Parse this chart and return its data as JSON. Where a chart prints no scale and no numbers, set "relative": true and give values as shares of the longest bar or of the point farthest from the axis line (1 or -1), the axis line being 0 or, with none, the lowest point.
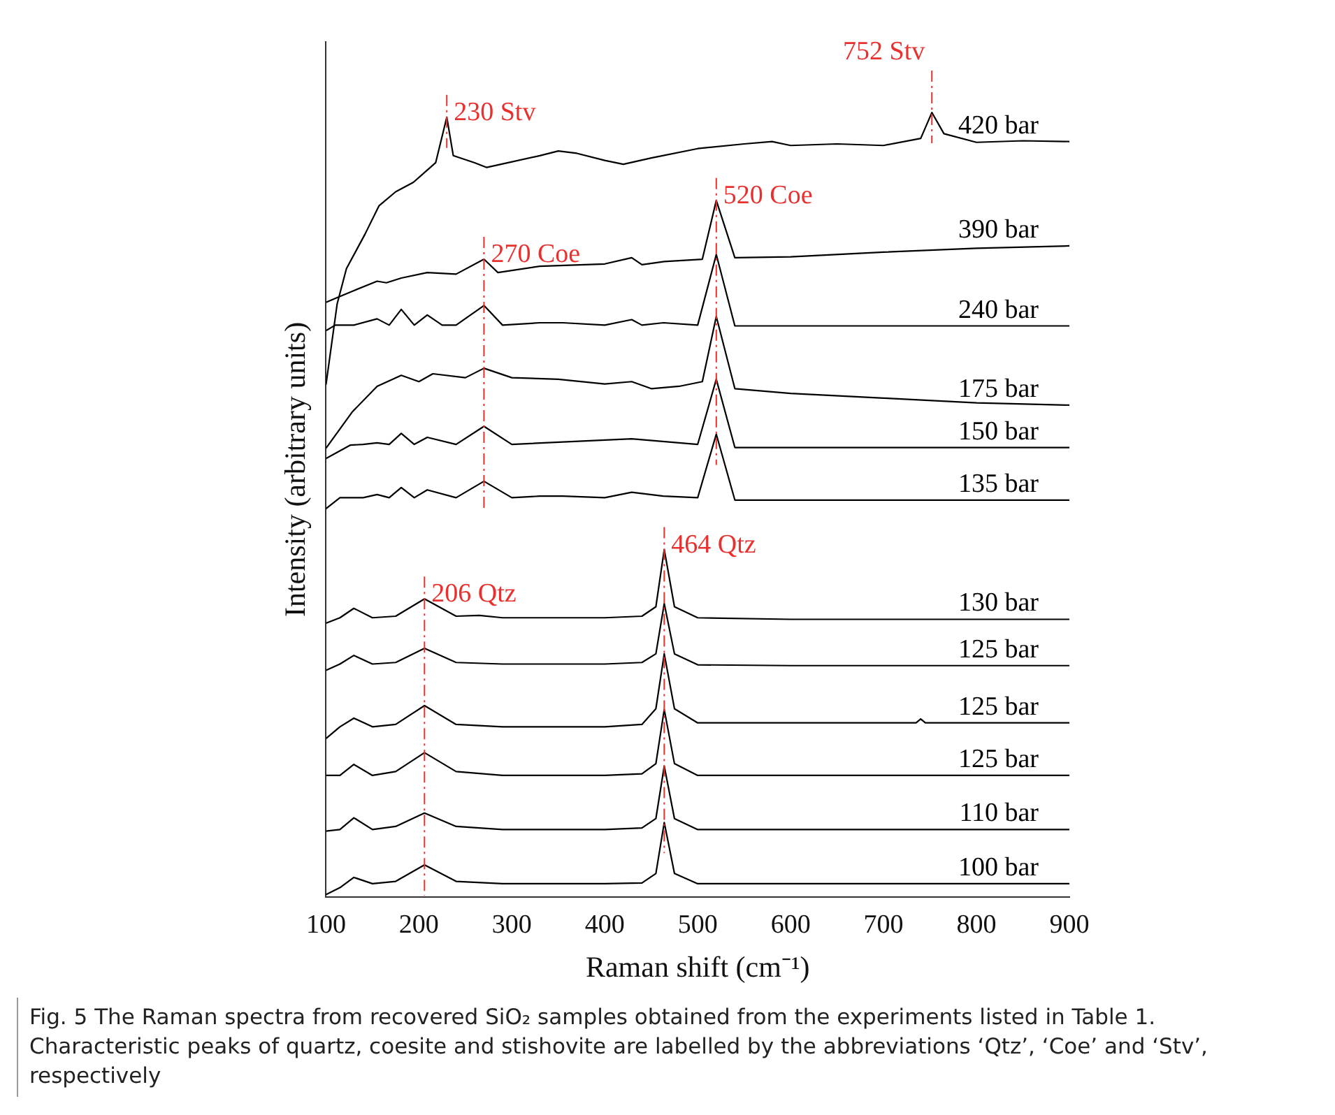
{
  "chart_data": {
    "type": "line",
    "relative": true,
    "xlabel": "Raman shift (cm⁻¹)",
    "ylabel": "Intensity (arbitrary units)",
    "xlim": [
      100,
      900
    ],
    "xticks": [
      100,
      200,
      300,
      400,
      500,
      600,
      700,
      800,
      900
    ],
    "grid": false,
    "series": [
      {
        "name": "420 bar",
        "color": "#000000",
        "x": [
          100,
          112,
          122,
          142,
          157,
          175,
          194,
          218,
          230,
          237,
          260,
          273,
          330,
          350,
          370,
          400,
          420,
          450,
          500,
          550,
          580,
          600,
          650,
          700,
          740,
          752,
          765,
          800,
          850,
          900
        ],
        "values": [
          0.653,
          0.756,
          0.801,
          0.845,
          0.881,
          0.899,
          0.911,
          0.936,
          0.994,
          0.945,
          0.936,
          0.93,
          0.945,
          0.951,
          0.948,
          0.939,
          0.934,
          0.942,
          0.954,
          0.96,
          0.963,
          0.958,
          0.96,
          0.958,
          0.967,
          1.0,
          0.973,
          0.962,
          0.964,
          0.963
        ]
      },
      {
        "name": "390 bar",
        "color": "#000000",
        "x": [
          100,
          112,
          130,
          155,
          165,
          181,
          209,
          240,
          270,
          285,
          330,
          400,
          429,
          440,
          464,
          505,
          520,
          540,
          600,
          700,
          800,
          900
        ],
        "values": [
          0.758,
          0.764,
          0.773,
          0.785,
          0.783,
          0.789,
          0.796,
          0.794,
          0.813,
          0.796,
          0.804,
          0.807,
          0.815,
          0.806,
          0.81,
          0.813,
          0.888,
          0.815,
          0.816,
          0.822,
          0.827,
          0.83
        ]
      },
      {
        "name": "240 bar",
        "color": "#000000",
        "x": [
          100,
          110,
          130,
          155,
          168,
          181,
          195,
          209,
          225,
          240,
          270,
          290,
          330,
          355,
          400,
          429,
          440,
          463,
          500,
          520,
          540,
          600,
          900
        ],
        "values": [
          0.722,
          0.729,
          0.729,
          0.737,
          0.729,
          0.749,
          0.729,
          0.742,
          0.729,
          0.729,
          0.754,
          0.729,
          0.732,
          0.732,
          0.729,
          0.736,
          0.729,
          0.732,
          0.729,
          0.819,
          0.728,
          0.728,
          0.728
        ]
      },
      {
        "name": "175 bar",
        "color": "#000000",
        "x": [
          100,
          128,
          155,
          181,
          200,
          215,
          250,
          270,
          300,
          350,
          400,
          429,
          450,
          480,
          505,
          520,
          540,
          600,
          700,
          800,
          900
        ],
        "values": [
          0.572,
          0.618,
          0.651,
          0.665,
          0.657,
          0.667,
          0.662,
          0.674,
          0.662,
          0.66,
          0.654,
          0.657,
          0.648,
          0.651,
          0.657,
          0.74,
          0.648,
          0.642,
          0.636,
          0.63,
          0.627
        ]
      },
      {
        "name": "150 bar",
        "color": "#000000",
        "x": [
          100,
          126,
          140,
          155,
          168,
          181,
          195,
          209,
          240,
          270,
          300,
          429,
          500,
          520,
          540,
          600,
          900
        ],
        "values": [
          0.559,
          0.576,
          0.577,
          0.579,
          0.577,
          0.591,
          0.577,
          0.586,
          0.577,
          0.6,
          0.577,
          0.584,
          0.577,
          0.66,
          0.573,
          0.573,
          0.573
        ]
      },
      {
        "name": "135 bar",
        "color": "#000000",
        "x": [
          100,
          115,
          140,
          155,
          168,
          181,
          195,
          209,
          240,
          270,
          300,
          330,
          355,
          400,
          429,
          463,
          500,
          520,
          540,
          600,
          900
        ],
        "values": [
          0.495,
          0.509,
          0.509,
          0.513,
          0.509,
          0.522,
          0.509,
          0.519,
          0.509,
          0.53,
          0.509,
          0.511,
          0.511,
          0.509,
          0.516,
          0.511,
          0.509,
          0.59,
          0.506,
          0.506,
          0.506
        ]
      },
      {
        "name": "130 bar",
        "color": "#000000",
        "x": [
          100,
          115,
          130,
          150,
          175,
          206,
          240,
          265,
          290,
          400,
          440,
          455,
          464,
          475,
          500,
          600,
          900
        ],
        "values": [
          0.349,
          0.356,
          0.368,
          0.356,
          0.358,
          0.38,
          0.358,
          0.359,
          0.356,
          0.356,
          0.358,
          0.37,
          0.443,
          0.37,
          0.356,
          0.354,
          0.354
        ]
      },
      {
        "name": "125 bar",
        "color": "#000000",
        "x": [
          100,
          115,
          130,
          150,
          175,
          206,
          240,
          290,
          400,
          440,
          455,
          464,
          475,
          500,
          600,
          900
        ],
        "values": [
          0.289,
          0.297,
          0.308,
          0.297,
          0.299,
          0.317,
          0.299,
          0.297,
          0.297,
          0.299,
          0.31,
          0.374,
          0.31,
          0.296,
          0.295,
          0.295
        ]
      },
      {
        "name": "125 bar",
        "color": "#000000",
        "x": [
          100,
          115,
          130,
          150,
          175,
          206,
          240,
          290,
          400,
          440,
          455,
          464,
          475,
          500,
          600,
          735,
          740,
          745,
          900
        ],
        "values": [
          0.202,
          0.217,
          0.228,
          0.217,
          0.22,
          0.244,
          0.22,
          0.217,
          0.217,
          0.22,
          0.24,
          0.31,
          0.24,
          0.222,
          0.222,
          0.222,
          0.227,
          0.222,
          0.222
        ]
      },
      {
        "name": "125 bar",
        "color": "#000000",
        "x": [
          100,
          115,
          130,
          150,
          175,
          206,
          240,
          290,
          400,
          440,
          455,
          464,
          475,
          500,
          600,
          900
        ],
        "values": [
          0.155,
          0.155,
          0.169,
          0.155,
          0.16,
          0.184,
          0.16,
          0.155,
          0.155,
          0.157,
          0.17,
          0.239,
          0.17,
          0.155,
          0.155,
          0.155
        ]
      },
      {
        "name": "110 bar",
        "color": "#000000",
        "x": [
          100,
          115,
          130,
          150,
          175,
          206,
          240,
          290,
          400,
          440,
          455,
          464,
          475,
          500,
          600,
          900
        ],
        "values": [
          0.084,
          0.086,
          0.101,
          0.086,
          0.09,
          0.107,
          0.09,
          0.086,
          0.086,
          0.088,
          0.1,
          0.167,
          0.1,
          0.086,
          0.086,
          0.086
        ]
      },
      {
        "name": "100 bar",
        "color": "#000000",
        "x": [
          100,
          115,
          130,
          150,
          175,
          206,
          240,
          290,
          400,
          440,
          455,
          464,
          475,
          500,
          600,
          900
        ],
        "values": [
          0.003,
          0.012,
          0.025,
          0.017,
          0.02,
          0.041,
          0.02,
          0.017,
          0.017,
          0.018,
          0.03,
          0.095,
          0.03,
          0.017,
          0.017,
          0.017
        ]
      }
    ],
    "ref_lines": [
      {
        "axis": "x",
        "value": 230,
        "label": "230 Stv",
        "color": "#e8312f",
        "line_style": "dashed"
      },
      {
        "axis": "x",
        "value": 752,
        "label": "752 Stv",
        "color": "#e8312f",
        "line_style": "dashed"
      },
      {
        "axis": "x",
        "value": 270,
        "label": "270 Coe",
        "color": "#e8312f",
        "line_style": "dashed"
      },
      {
        "axis": "x",
        "value": 520,
        "label": "520 Coe",
        "color": "#e8312f",
        "line_style": "dashed"
      },
      {
        "axis": "x",
        "value": 206,
        "label": "206 Qtz",
        "color": "#e8312f",
        "line_style": "dashed"
      },
      {
        "axis": "x",
        "value": 464,
        "label": "464 Qtz",
        "color": "#e8312f",
        "line_style": "dashed"
      }
    ],
    "annotations": [
      "Fig. 5 The Raman spectra from recovered SiO₂ samples obtained from the experiments listed in Table 1. Characteristic peaks of quartz, coesite and stishovite are labelled by the abbreviations ‘Qtz’, ‘Coe’ and ‘Stv’, respectively"
    ]
  }
}
